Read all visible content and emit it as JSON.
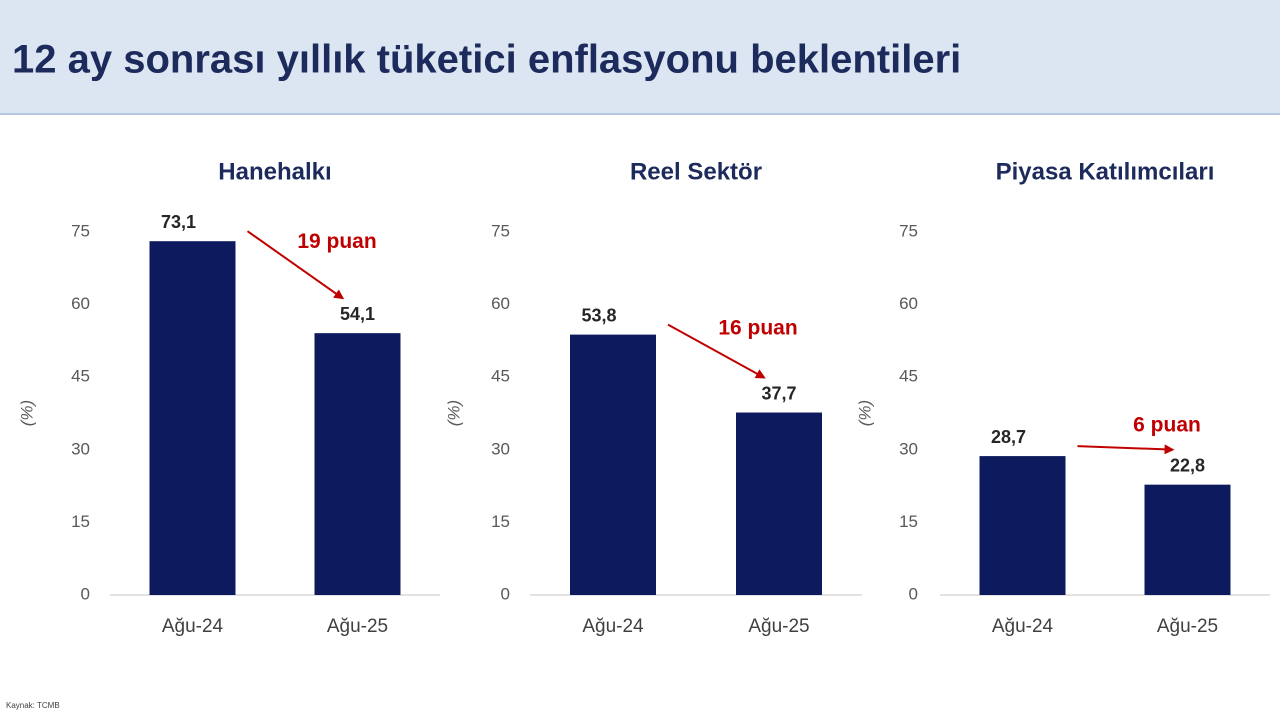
{
  "title": "12 ay sonrası yıllık tüketici enflasyonu beklentileri",
  "source": "Kaynak: TCMB",
  "chart_data": [
    {
      "type": "bar",
      "title": "Hanehalkı",
      "y_label": "(%)",
      "categories": [
        "Ağu-24",
        "Ağu-25"
      ],
      "values": [
        73.1,
        54.1
      ],
      "value_labels": [
        "73,1",
        "54,1"
      ],
      "annotation": "19 puan",
      "color": "#0d1b5e",
      "ylim": [
        0,
        75
      ],
      "yticks": [
        0,
        15,
        30,
        45,
        60,
        75
      ]
    },
    {
      "type": "bar",
      "title": "Reel Sektör",
      "y_label": "(%)",
      "categories": [
        "Ağu-24",
        "Ağu-25"
      ],
      "values": [
        53.8,
        37.7
      ],
      "value_labels": [
        "53,8",
        "37,7"
      ],
      "annotation": "16 puan",
      "color": "#0d1b5e",
      "ylim": [
        0,
        75
      ],
      "yticks": [
        0,
        15,
        30,
        45,
        60,
        75
      ]
    },
    {
      "type": "bar",
      "title": "Piyasa Katılımcıları",
      "y_label": "(%)",
      "categories": [
        "Ağu-24",
        "Ağu-25"
      ],
      "values": [
        28.7,
        22.8
      ],
      "value_labels": [
        "28,7",
        "22,8"
      ],
      "annotation": "6 puan",
      "color": "#0d1b5e",
      "ylim": [
        0,
        75
      ],
      "yticks": [
        0,
        15,
        30,
        45,
        60,
        75
      ]
    }
  ]
}
